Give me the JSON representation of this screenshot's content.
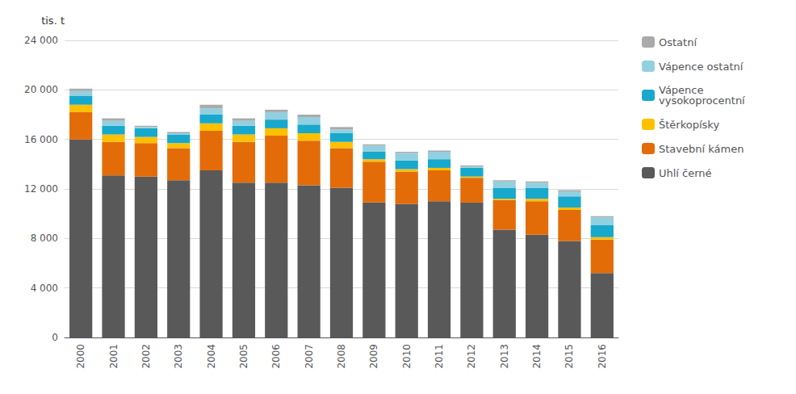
{
  "chart_data": {
    "type": "bar",
    "stacked": true,
    "ylabel": "tis. t",
    "categories": [
      "2000",
      "2001",
      "2002",
      "2003",
      "2004",
      "2005",
      "2006",
      "2007",
      "2008",
      "2009",
      "2010",
      "2011",
      "2012",
      "2013",
      "2014",
      "2015",
      "2016"
    ],
    "series": [
      {
        "name": "Uhlí černé",
        "color": "#595959",
        "values": [
          16000,
          13100,
          13000,
          12700,
          13500,
          12500,
          12500,
          12300,
          12100,
          10900,
          10800,
          11000,
          10900,
          8700,
          8300,
          7800,
          5200
        ]
      },
      {
        "name": "Stavební kámen",
        "color": "#E36C09",
        "values": [
          2200,
          2700,
          2700,
          2600,
          3200,
          3300,
          3800,
          3600,
          3200,
          3300,
          2600,
          2500,
          2000,
          2400,
          2700,
          2500,
          2700
        ]
      },
      {
        "name": "Štěrkopísky",
        "color": "#FFC000",
        "values": [
          600,
          600,
          500,
          400,
          600,
          600,
          600,
          600,
          500,
          200,
          200,
          200,
          100,
          100,
          200,
          200,
          200
        ]
      },
      {
        "name": "Vápence\nvysokoprocentní",
        "color": "#17A8CC",
        "values": [
          700,
          700,
          700,
          700,
          700,
          700,
          700,
          700,
          700,
          600,
          700,
          700,
          700,
          900,
          900,
          900,
          1000
        ]
      },
      {
        "name": "Vápence ostatní",
        "color": "#92D0E0",
        "values": [
          400,
          400,
          100,
          100,
          500,
          400,
          600,
          600,
          300,
          500,
          600,
          600,
          100,
          500,
          400,
          400,
          600
        ]
      },
      {
        "name": "Ostatní",
        "color": "#AAAAAA",
        "values": [
          200,
          200,
          100,
          100,
          300,
          200,
          200,
          200,
          200,
          100,
          100,
          100,
          100,
          100,
          100,
          100,
          100
        ]
      }
    ],
    "ylim": [
      0,
      24000
    ],
    "yticks": [
      0,
      {
        "value": 4000,
        "label": "4 000"
      },
      {
        "value": 8000,
        "label": "8 000"
      },
      {
        "value": 12000,
        "label": "12 000"
      },
      {
        "value": 16000,
        "label": "16 000"
      },
      {
        "value": 20000,
        "label": "20 000"
      },
      {
        "value": 24000,
        "label": "24 000"
      }
    ],
    "grid": true,
    "legend": "right"
  }
}
